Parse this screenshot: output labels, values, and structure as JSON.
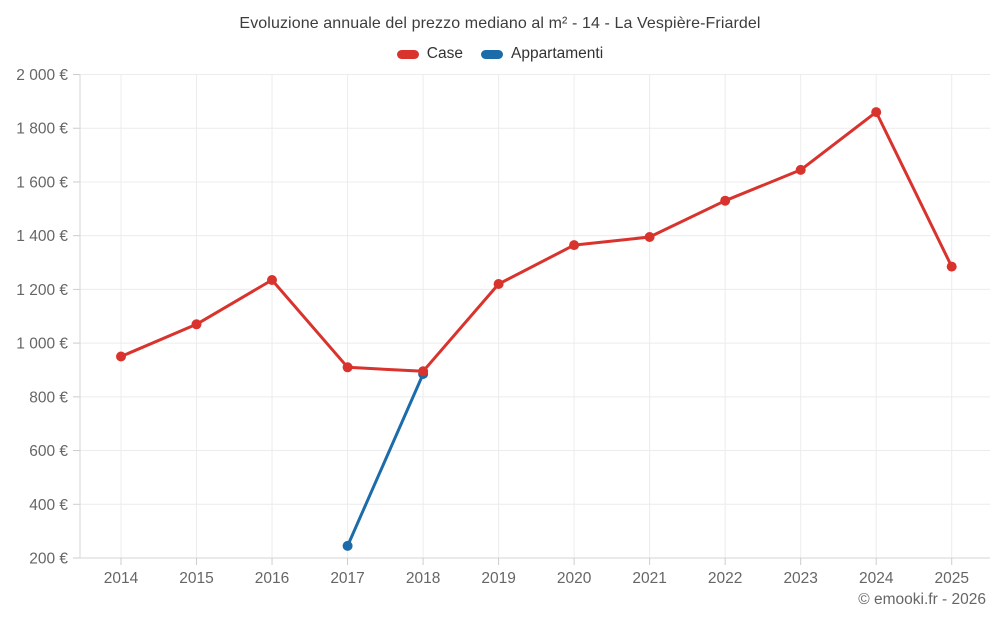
{
  "title": "Evoluzione annuale del prezzo mediano al m² - 14 - La Vespière-Friardel",
  "legend": [
    {
      "label": "Case",
      "color": "#d9332e"
    },
    {
      "label": "Appartamenti",
      "color": "#1b6ca8"
    }
  ],
  "footer": "© emooki.fr - 2026",
  "icons": [
    {
      "name": "case-series-swatch",
      "shape": "pill",
      "color": "#d9332e"
    },
    {
      "name": "appartamenti-series-swatch",
      "shape": "pill",
      "color": "#1b6ca8"
    }
  ],
  "chart_data": {
    "type": "line",
    "title": "Evoluzione annuale del prezzo mediano al m² - 14 - La Vespière-Friardel",
    "categories": [
      "2014",
      "2015",
      "2016",
      "2017",
      "2018",
      "2019",
      "2020",
      "2021",
      "2022",
      "2023",
      "2024",
      "2025"
    ],
    "series": [
      {
        "name": "Case",
        "color": "#d9332e",
        "values": [
          950,
          1070,
          1235,
          910,
          895,
          1220,
          1365,
          1395,
          1530,
          1645,
          1860,
          1285
        ]
      },
      {
        "name": "Appartamenti",
        "color": "#1b6ca8",
        "values": [
          null,
          null,
          null,
          245,
          885,
          null,
          null,
          null,
          null,
          null,
          null,
          null
        ]
      }
    ],
    "xlabel": "",
    "ylabel": "",
    "ylim": [
      200,
      2000
    ],
    "yticks": [
      200,
      400,
      600,
      800,
      1000,
      1200,
      1400,
      1600,
      1800,
      2000
    ],
    "ytick_labels": [
      "200 €",
      "400 €",
      "600 €",
      "800 €",
      "1 000 €",
      "1 200 €",
      "1 400 €",
      "1 600 €",
      "1 800 €",
      "2 000 €"
    ],
    "grid": true,
    "legend_position": "top",
    "currency": "€"
  }
}
